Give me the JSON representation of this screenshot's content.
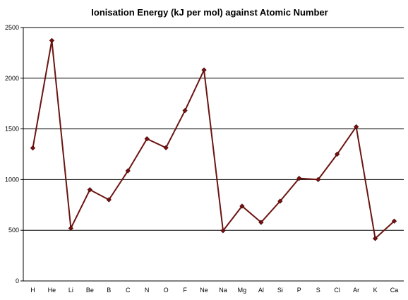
{
  "chart_data": {
    "type": "line",
    "title": "Ionisation Energy (kJ per mol) against Atomic Number",
    "categories": [
      "H",
      "He",
      "Li",
      "Be",
      "B",
      "C",
      "N",
      "O",
      "F",
      "Ne",
      "Na",
      "Mg",
      "Al",
      "Si",
      "P",
      "S",
      "Cl",
      "Ar",
      "K",
      "Ca"
    ],
    "series": [
      {
        "values": [
          1312,
          2372,
          520,
          900,
          801,
          1086,
          1402,
          1314,
          1681,
          2081,
          496,
          738,
          578,
          787,
          1012,
          1000,
          1251,
          1521,
          419,
          590
        ]
      }
    ],
    "y_ticks": [
      "0",
      "500",
      "1000",
      "1500",
      "2000",
      "2500"
    ],
    "ylim": [
      0,
      2500
    ],
    "grid": true,
    "legend": "none",
    "colors": {
      "line": "#6b1410",
      "marker": "#7a0f0f"
    }
  }
}
